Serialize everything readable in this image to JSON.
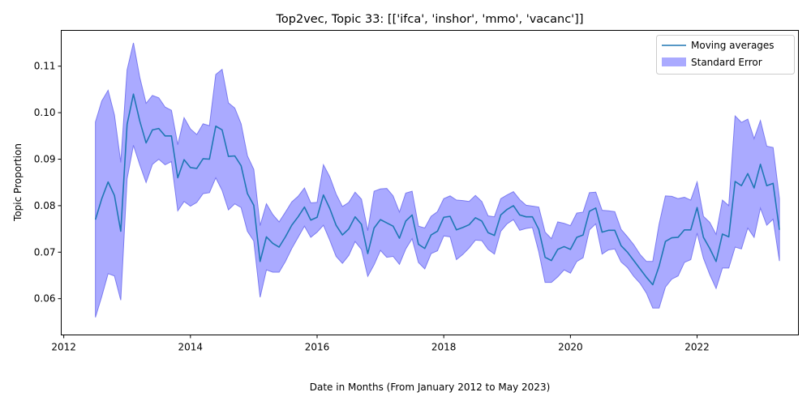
{
  "chart_data": {
    "type": "line",
    "title": "Top2vec, Topic 33: [['ifca', 'inshor', 'mmo', 'vacanc']]",
    "xlabel": "Date in Months (From January 2012 to May 2023)",
    "ylabel": "Topic Proportion",
    "xlim": [
      2011.96,
      2023.6
    ],
    "ylim": [
      0.0522,
      0.1177
    ],
    "x_ticks": [
      2012,
      2014,
      2016,
      2018,
      2020,
      2022
    ],
    "x_tick_labels": [
      "2012",
      "2014",
      "2016",
      "2018",
      "2020",
      "2022"
    ],
    "y_ticks": [
      0.06,
      0.07,
      0.08,
      0.09,
      0.1,
      0.11
    ],
    "y_tick_labels": [
      "0.06",
      "0.07",
      "0.08",
      "0.09",
      "0.10",
      "0.11"
    ],
    "grid": false,
    "legend_position": "top-right",
    "colors": {
      "line": "#1f77b4",
      "band_fill": "#aaaaff",
      "band_edge": "#7b7bf0"
    },
    "x": [
      2012.5,
      2012.6,
      2012.7,
      2012.8,
      2012.9,
      2013.0,
      2013.1,
      2013.2,
      2013.3,
      2013.4,
      2013.5,
      2013.6,
      2013.7,
      2013.8,
      2013.9,
      2014.0,
      2014.1,
      2014.2,
      2014.3,
      2014.4,
      2014.5,
      2014.6,
      2014.7,
      2014.8,
      2014.9,
      2015.0,
      2015.1,
      2015.2,
      2015.3,
      2015.4,
      2015.5,
      2015.6,
      2015.7,
      2015.8,
      2015.9,
      2016.0,
      2016.1,
      2016.2,
      2016.3,
      2016.4,
      2016.5,
      2016.6,
      2016.7,
      2016.8,
      2016.9,
      2017.0,
      2017.1,
      2017.2,
      2017.3,
      2017.4,
      2017.5,
      2017.6,
      2017.7,
      2017.8,
      2017.9,
      2018.0,
      2018.1,
      2018.2,
      2018.3,
      2018.4,
      2018.5,
      2018.6,
      2018.7,
      2018.8,
      2018.9,
      2019.0,
      2019.1,
      2019.2,
      2019.3,
      2019.4,
      2019.5,
      2019.6,
      2019.7,
      2019.8,
      2019.9,
      2020.0,
      2020.1,
      2020.2,
      2020.3,
      2020.4,
      2020.5,
      2020.6,
      2020.7,
      2020.8,
      2020.9,
      2021.0,
      2021.1,
      2021.2,
      2021.3,
      2021.4,
      2021.5,
      2021.6,
      2021.7,
      2021.8,
      2021.9,
      2022.0,
      2022.1,
      2022.2,
      2022.3,
      2022.4,
      2022.5,
      2022.6,
      2022.7,
      2022.8,
      2022.9,
      2023.0,
      2023.1,
      2023.2,
      2023.3
    ],
    "series": [
      {
        "name": "Moving averages",
        "values": [
          0.077,
          0.0815,
          0.0851,
          0.0822,
          0.0745,
          0.0975,
          0.104,
          0.0982,
          0.0935,
          0.0963,
          0.0966,
          0.095,
          0.095,
          0.086,
          0.0899,
          0.0882,
          0.088,
          0.0901,
          0.09,
          0.0971,
          0.0963,
          0.0906,
          0.0907,
          0.0886,
          0.0826,
          0.0801,
          0.068,
          0.0733,
          0.0719,
          0.0711,
          0.0733,
          0.0758,
          0.0776,
          0.0797,
          0.0769,
          0.0775,
          0.0823,
          0.0794,
          0.0758,
          0.0737,
          0.075,
          0.0776,
          0.076,
          0.0697,
          0.0752,
          0.077,
          0.0763,
          0.0756,
          0.073,
          0.0767,
          0.078,
          0.0717,
          0.0708,
          0.0737,
          0.0745,
          0.0775,
          0.0777,
          0.0748,
          0.0753,
          0.0759,
          0.0774,
          0.0767,
          0.0742,
          0.0736,
          0.078,
          0.0792,
          0.08,
          0.078,
          0.0776,
          0.0776,
          0.0749,
          0.0689,
          0.0682,
          0.0706,
          0.0712,
          0.0706,
          0.0732,
          0.0737,
          0.0788,
          0.0795,
          0.0743,
          0.0747,
          0.0747,
          0.0714,
          0.07,
          0.0682,
          0.0664,
          0.0646,
          0.063,
          0.067,
          0.0723,
          0.0731,
          0.0732,
          0.0748,
          0.0748,
          0.0796,
          0.0732,
          0.0708,
          0.068,
          0.0739,
          0.0733,
          0.0852,
          0.0843,
          0.0869,
          0.0838,
          0.0889,
          0.0843,
          0.0848,
          0.0748
        ]
      }
    ],
    "band_label": "Standard Error",
    "band_upper": [
      0.098,
      0.1025,
      0.1048,
      0.0995,
      0.0893,
      0.1092,
      0.115,
      0.1076,
      0.102,
      0.1037,
      0.1032,
      0.1012,
      0.1005,
      0.0931,
      0.0989,
      0.0965,
      0.0953,
      0.0976,
      0.0972,
      0.1082,
      0.1093,
      0.1021,
      0.101,
      0.0976,
      0.0907,
      0.0878,
      0.0757,
      0.0804,
      0.0781,
      0.0765,
      0.0786,
      0.0808,
      0.082,
      0.0838,
      0.0806,
      0.0807,
      0.0888,
      0.0862,
      0.0825,
      0.0798,
      0.0807,
      0.0829,
      0.0814,
      0.0746,
      0.0831,
      0.0836,
      0.0837,
      0.0821,
      0.0786,
      0.0827,
      0.0831,
      0.0756,
      0.0752,
      0.0777,
      0.0787,
      0.0815,
      0.0821,
      0.0812,
      0.0811,
      0.0809,
      0.0822,
      0.0809,
      0.0778,
      0.0776,
      0.0815,
      0.0823,
      0.083,
      0.0813,
      0.0801,
      0.0799,
      0.0797,
      0.0743,
      0.0729,
      0.0765,
      0.0762,
      0.0757,
      0.0784,
      0.0786,
      0.0828,
      0.0829,
      0.079,
      0.0789,
      0.0787,
      0.0749,
      0.0733,
      0.0716,
      0.0695,
      0.068,
      0.068,
      0.076,
      0.0821,
      0.082,
      0.0815,
      0.0818,
      0.0812,
      0.0851,
      0.0777,
      0.0764,
      0.0738,
      0.0812,
      0.08,
      0.0993,
      0.0979,
      0.0986,
      0.0944,
      0.0983,
      0.0928,
      0.0925,
      0.0815
    ]
  }
}
